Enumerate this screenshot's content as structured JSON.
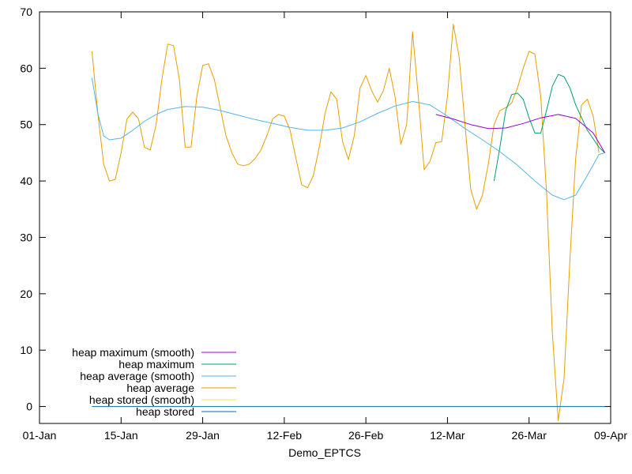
{
  "chart_data": {
    "type": "line",
    "xlabel": "Demo_EPTCS",
    "ylabel": "",
    "title": "",
    "xlim": [
      "2025-01-01",
      "2025-04-09"
    ],
    "ylim": [
      -3,
      70
    ],
    "grid": false,
    "legend_position": "bottom-left",
    "x_ticks": [
      {
        "date": "2025-01-01",
        "label": "01-Jan"
      },
      {
        "date": "2025-01-15",
        "label": "15-Jan"
      },
      {
        "date": "2025-01-29",
        "label": "29-Jan"
      },
      {
        "date": "2025-02-12",
        "label": "12-Feb"
      },
      {
        "date": "2025-02-26",
        "label": "26-Feb"
      },
      {
        "date": "2025-03-12",
        "label": "12-Mar"
      },
      {
        "date": "2025-03-26",
        "label": "26-Mar"
      },
      {
        "date": "2025-04-09",
        "label": "09-Apr"
      }
    ],
    "y_ticks": [
      0,
      10,
      20,
      30,
      40,
      50,
      60,
      70
    ],
    "series": [
      {
        "name": "heap maximum (smooth)",
        "color": "#9400d3",
        "points": [
          [
            "2025-03-10",
            51.8
          ],
          [
            "2025-03-13",
            51.0
          ],
          [
            "2025-03-16",
            50.0
          ],
          [
            "2025-03-19",
            49.3
          ],
          [
            "2025-03-22",
            49.4
          ],
          [
            "2025-03-25",
            50.2
          ],
          [
            "2025-03-28",
            51.2
          ],
          [
            "2025-03-31",
            51.8
          ],
          [
            "2025-04-03",
            51.1
          ],
          [
            "2025-04-06",
            48.5
          ],
          [
            "2025-04-08",
            45.0
          ]
        ]
      },
      {
        "name": "heap maximum",
        "color": "#009e73",
        "points": [
          [
            "2025-03-20",
            40.0
          ],
          [
            "2025-03-21",
            46.0
          ],
          [
            "2025-03-22",
            52.5
          ],
          [
            "2025-03-23",
            55.3
          ],
          [
            "2025-03-24",
            55.6
          ],
          [
            "2025-03-25",
            54.5
          ],
          [
            "2025-03-26",
            51.2
          ],
          [
            "2025-03-27",
            48.5
          ],
          [
            "2025-03-28",
            48.5
          ],
          [
            "2025-03-29",
            52.5
          ],
          [
            "2025-03-30",
            56.8
          ],
          [
            "2025-03-31",
            58.9
          ],
          [
            "2025-04-01",
            58.5
          ],
          [
            "2025-04-02",
            56.5
          ],
          [
            "2025-04-03",
            53.5
          ],
          [
            "2025-04-05",
            49.0
          ],
          [
            "2025-04-07",
            46.0
          ],
          [
            "2025-04-08",
            45.0
          ]
        ]
      },
      {
        "name": "heap average (smooth)",
        "color": "#56b4e9",
        "points": [
          [
            "2025-01-10",
            58.3
          ],
          [
            "2025-01-11",
            52.0
          ],
          [
            "2025-01-12",
            48.0
          ],
          [
            "2025-01-13",
            47.3
          ],
          [
            "2025-01-15",
            47.6
          ],
          [
            "2025-01-17",
            49.0
          ],
          [
            "2025-01-19",
            50.6
          ],
          [
            "2025-01-21",
            51.8
          ],
          [
            "2025-01-23",
            52.7
          ],
          [
            "2025-01-26",
            53.2
          ],
          [
            "2025-01-29",
            53.1
          ],
          [
            "2025-02-01",
            52.5
          ],
          [
            "2025-02-04",
            51.7
          ],
          [
            "2025-02-07",
            50.9
          ],
          [
            "2025-02-10",
            50.2
          ],
          [
            "2025-02-13",
            49.5
          ],
          [
            "2025-02-16",
            49.0
          ],
          [
            "2025-02-19",
            49.0
          ],
          [
            "2025-02-22",
            49.4
          ],
          [
            "2025-02-25",
            50.5
          ],
          [
            "2025-02-28",
            52.0
          ],
          [
            "2025-03-03",
            53.3
          ],
          [
            "2025-03-06",
            54.1
          ],
          [
            "2025-03-09",
            53.5
          ],
          [
            "2025-03-12",
            51.5
          ],
          [
            "2025-03-15",
            49.3
          ],
          [
            "2025-03-18",
            47.3
          ],
          [
            "2025-03-21",
            45.2
          ],
          [
            "2025-03-24",
            42.8
          ],
          [
            "2025-03-27",
            40.0
          ],
          [
            "2025-03-30",
            37.5
          ],
          [
            "2025-04-01",
            36.7
          ],
          [
            "2025-04-03",
            37.5
          ],
          [
            "2025-04-05",
            41.0
          ],
          [
            "2025-04-07",
            44.7
          ],
          [
            "2025-04-08",
            45.0
          ]
        ]
      },
      {
        "name": "heap average",
        "color": "#e69f00",
        "points": [
          [
            "2025-01-10",
            63.0
          ],
          [
            "2025-01-11",
            52.0
          ],
          [
            "2025-01-12",
            43.0
          ],
          [
            "2025-01-13",
            40.0
          ],
          [
            "2025-01-14",
            40.3
          ],
          [
            "2025-01-15",
            45.0
          ],
          [
            "2025-01-16",
            51.0
          ],
          [
            "2025-01-17",
            52.2
          ],
          [
            "2025-01-18",
            51.0
          ],
          [
            "2025-01-19",
            46.0
          ],
          [
            "2025-01-20",
            45.5
          ],
          [
            "2025-01-21",
            50.0
          ],
          [
            "2025-01-22",
            58.0
          ],
          [
            "2025-01-23",
            64.3
          ],
          [
            "2025-01-24",
            64.0
          ],
          [
            "2025-01-25",
            58.0
          ],
          [
            "2025-01-26",
            46.0
          ],
          [
            "2025-01-27",
            46.0
          ],
          [
            "2025-01-28",
            55.0
          ],
          [
            "2025-01-29",
            60.5
          ],
          [
            "2025-01-30",
            60.8
          ],
          [
            "2025-01-31",
            58.0
          ],
          [
            "2025-02-01",
            53.0
          ],
          [
            "2025-02-02",
            48.0
          ],
          [
            "2025-02-03",
            45.0
          ],
          [
            "2025-02-04",
            43.0
          ],
          [
            "2025-02-05",
            42.7
          ],
          [
            "2025-02-06",
            43.0
          ],
          [
            "2025-02-07",
            44.0
          ],
          [
            "2025-02-08",
            45.5
          ],
          [
            "2025-02-09",
            48.0
          ],
          [
            "2025-02-10",
            51.0
          ],
          [
            "2025-02-11",
            51.8
          ],
          [
            "2025-02-12",
            51.5
          ],
          [
            "2025-02-13",
            49.0
          ],
          [
            "2025-02-14",
            44.0
          ],
          [
            "2025-02-15",
            39.3
          ],
          [
            "2025-02-16",
            38.8
          ],
          [
            "2025-02-17",
            41.0
          ],
          [
            "2025-02-18",
            46.0
          ],
          [
            "2025-02-19",
            52.0
          ],
          [
            "2025-02-20",
            55.8
          ],
          [
            "2025-02-21",
            54.5
          ],
          [
            "2025-02-22",
            47.0
          ],
          [
            "2025-02-23",
            43.8
          ],
          [
            "2025-02-24",
            48.0
          ],
          [
            "2025-02-25",
            56.5
          ],
          [
            "2025-02-26",
            58.7
          ],
          [
            "2025-02-27",
            56.0
          ],
          [
            "2025-02-28",
            54.0
          ],
          [
            "2025-03-01",
            56.0
          ],
          [
            "2025-03-02",
            60.0
          ],
          [
            "2025-03-03",
            55.0
          ],
          [
            "2025-03-04",
            46.5
          ],
          [
            "2025-03-05",
            50.0
          ],
          [
            "2025-03-06",
            66.5
          ],
          [
            "2025-03-07",
            55.0
          ],
          [
            "2025-03-08",
            42.0
          ],
          [
            "2025-03-09",
            43.5
          ],
          [
            "2025-03-10",
            46.8
          ],
          [
            "2025-03-11",
            47.0
          ],
          [
            "2025-03-12",
            55.0
          ],
          [
            "2025-03-13",
            67.8
          ],
          [
            "2025-03-14",
            62.0
          ],
          [
            "2025-03-15",
            50.0
          ],
          [
            "2025-03-16",
            38.5
          ],
          [
            "2025-03-17",
            35.0
          ],
          [
            "2025-03-18",
            37.5
          ],
          [
            "2025-03-19",
            43.0
          ],
          [
            "2025-03-20",
            50.0
          ],
          [
            "2025-03-21",
            52.5
          ],
          [
            "2025-03-22",
            53.0
          ],
          [
            "2025-03-23",
            53.8
          ],
          [
            "2025-03-24",
            56.5
          ],
          [
            "2025-03-25",
            60.0
          ],
          [
            "2025-03-26",
            63.0
          ],
          [
            "2025-03-27",
            62.5
          ],
          [
            "2025-03-28",
            55.0
          ],
          [
            "2025-03-29",
            38.0
          ],
          [
            "2025-03-30",
            13.0
          ],
          [
            "2025-03-31",
            -2.5
          ],
          [
            "2025-04-01",
            5.0
          ],
          [
            "2025-04-02",
            26.0
          ],
          [
            "2025-04-03",
            44.0
          ],
          [
            "2025-04-04",
            53.5
          ],
          [
            "2025-04-05",
            54.5
          ],
          [
            "2025-04-06",
            51.5
          ],
          [
            "2025-04-07",
            45.0
          ]
        ]
      },
      {
        "name": "heap stored (smooth)",
        "color": "#f0e442",
        "points": [
          [
            "2025-01-10",
            0.0
          ],
          [
            "2025-04-08",
            0.0
          ]
        ]
      },
      {
        "name": "heap stored",
        "color": "#0072b2",
        "points": [
          [
            "2025-01-10",
            0.0
          ],
          [
            "2025-04-08",
            0.0
          ]
        ]
      }
    ]
  }
}
